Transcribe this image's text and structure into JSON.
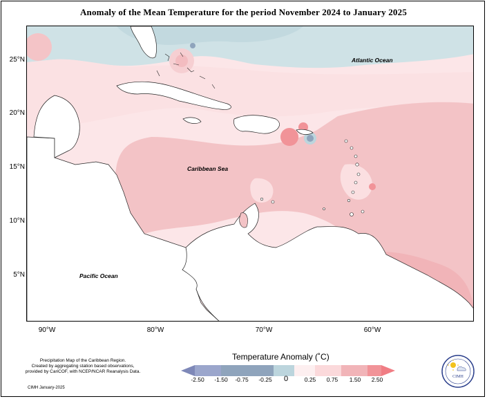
{
  "title": "Anomaly of the Mean Temperature for the period November 2024 to January 2025",
  "map": {
    "lat_labels": [
      "25°N",
      "20°N",
      "15°N",
      "10°N",
      "5°N"
    ],
    "lon_labels": [
      "90°W",
      "80°W",
      "70°W",
      "60°W"
    ],
    "labels": {
      "atlantic": "Atlantic Ocean",
      "caribbean": "Caribbean Sea",
      "pacific": "Pacific Ocean"
    }
  },
  "legend": {
    "title": "Temperature Anomaly (˚C)",
    "bins": [
      {
        "label": "-2.50",
        "color": "#7e88b8"
      },
      {
        "label": "-1.50",
        "color": "#9ba6cc"
      },
      {
        "label": "-0.75",
        "color": "#8fa4bc"
      },
      {
        "label": "-0.25",
        "color": "#bcd5dd"
      },
      {
        "label": "0",
        "color": "#fdeff0"
      },
      {
        "label": "0.25",
        "color": "#fbd9db"
      },
      {
        "label": "0.75",
        "color": "#f1b4b8"
      },
      {
        "label": "1.50",
        "color": "#f19398"
      },
      {
        "label": "2.50",
        "color": "#f07d84"
      }
    ]
  },
  "credit": {
    "line1": "Precipitation Map of the Caribbean Region.",
    "line2": "Created by aggregating station based observations,",
    "line3": "provided by CariCOF, with NCEP/NCAR Reanalysis Data.",
    "date": "CIMH January-2025"
  },
  "logo": {
    "text": "CIMH",
    "icon": "sun-cloud-icon"
  }
}
